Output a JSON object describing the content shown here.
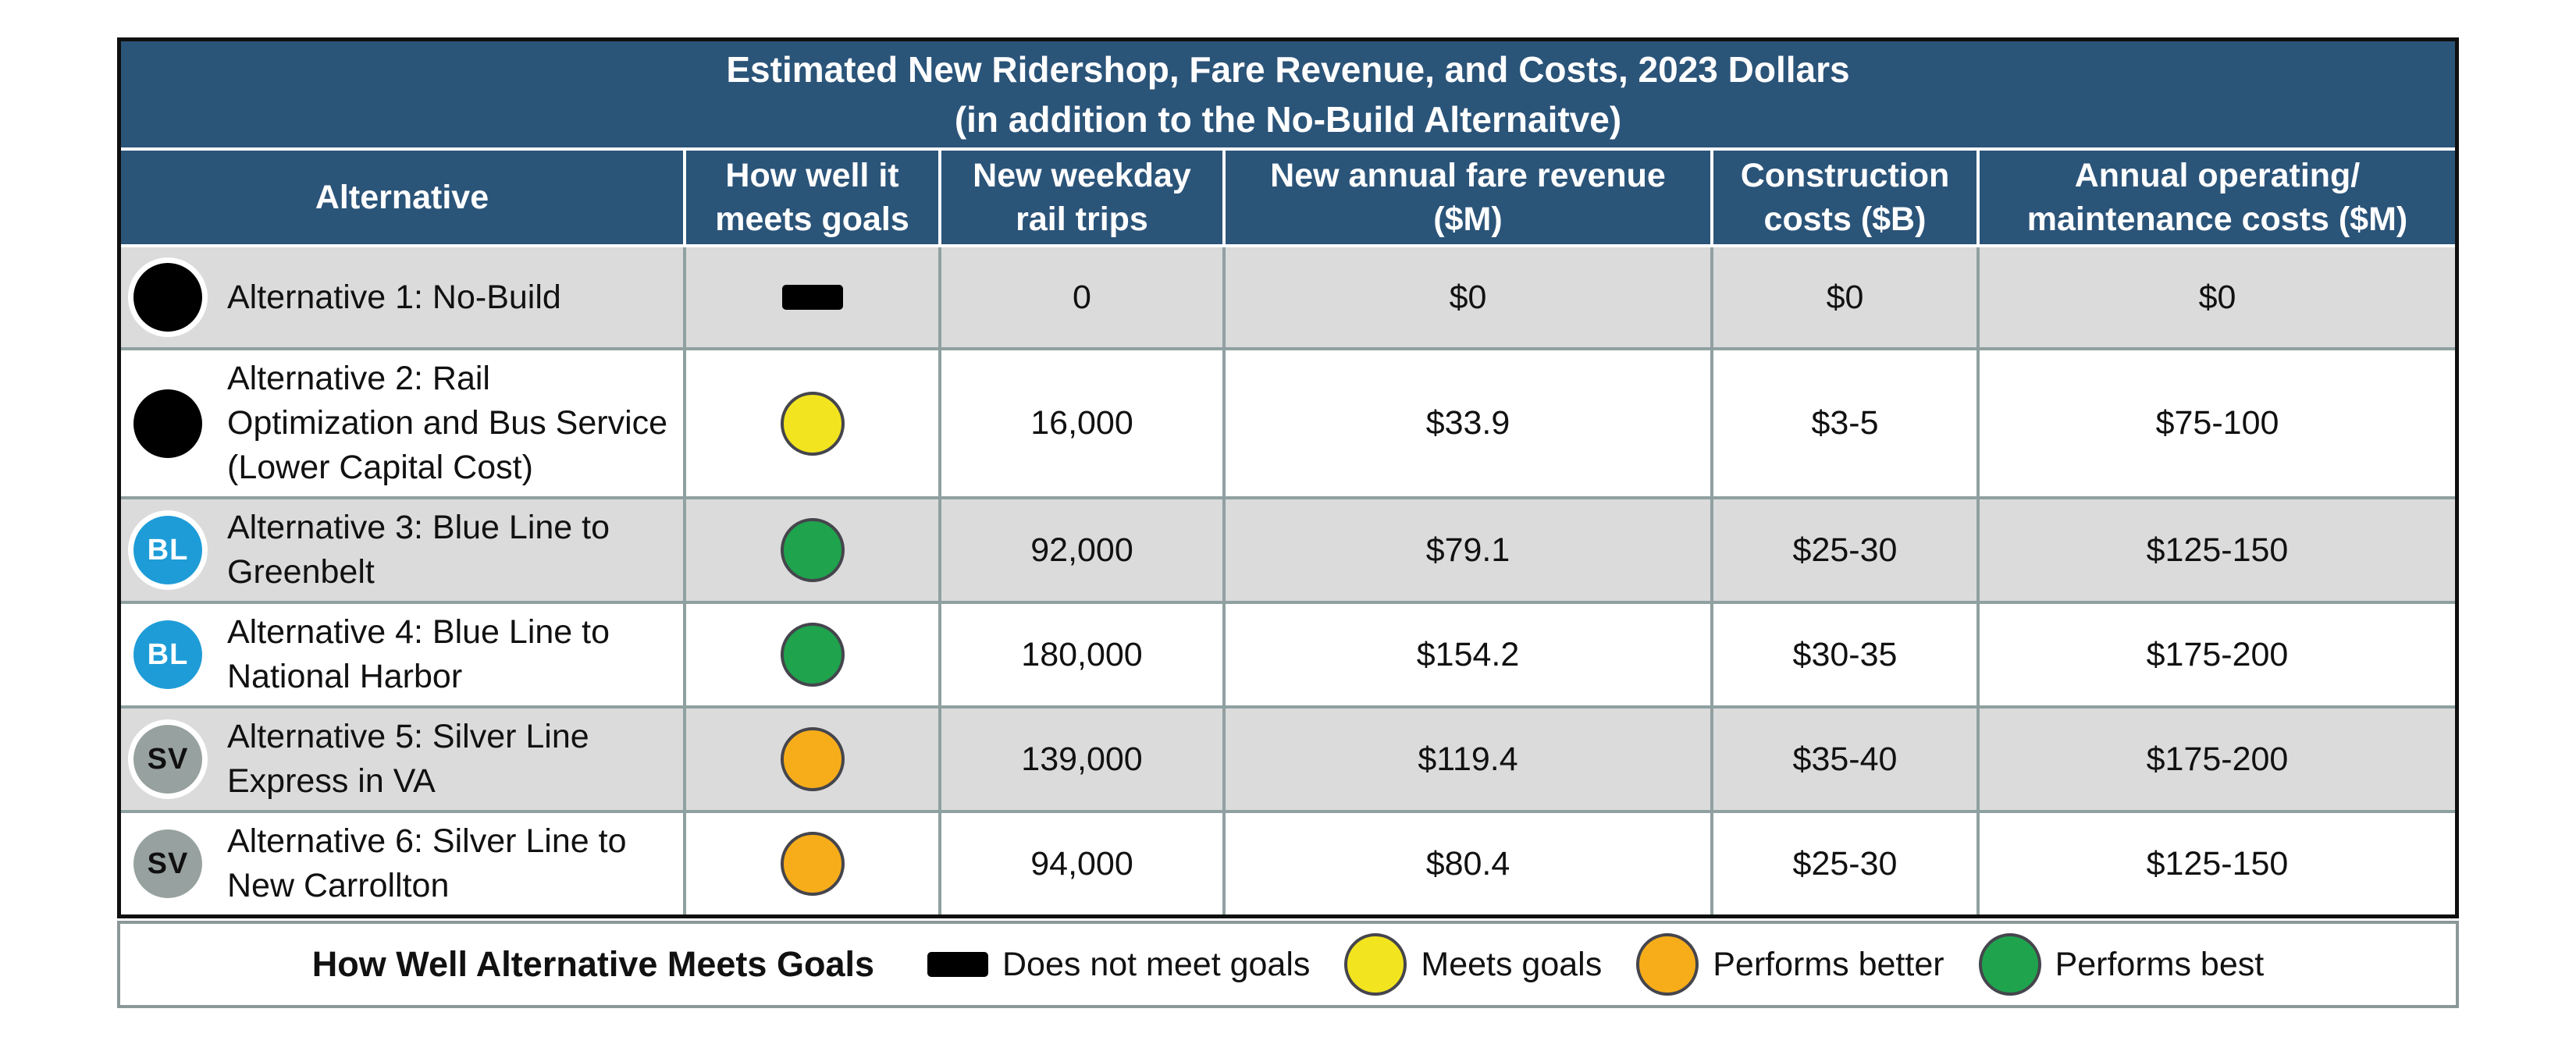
{
  "title": {
    "line1": "Estimated New Ridershop, Fare Revenue, and Costs, 2023 Dollars",
    "line2": "(in addition to the No-Build Alternaitve)"
  },
  "columns": [
    "Alternative",
    "How well it\nmeets goals",
    "New weekday\nrail trips",
    "New annual fare revenue\n($M)",
    "Construction\ncosts ($B)",
    "Annual operating/\nmaintenance costs ($M)"
  ],
  "rows": [
    {
      "badge": {
        "type": "black",
        "label": ""
      },
      "name": "Alternative 1: No-Build",
      "rating": "dash",
      "trips": "0",
      "fare_revenue": "$0",
      "construction": "$0",
      "operating": "$0",
      "shaded": true,
      "tall": false
    },
    {
      "badge": {
        "type": "black",
        "label": ""
      },
      "name": "Alternative 2: Rail Optimization and Bus Service (Lower Capital Cost)",
      "rating": "meets",
      "trips": "16,000",
      "fare_revenue": "$33.9",
      "construction": "$3-5",
      "operating": "$75-100",
      "shaded": false,
      "tall": true
    },
    {
      "badge": {
        "type": "blue",
        "label": "BL"
      },
      "name": "Alternative 3: Blue Line to Greenbelt",
      "rating": "best",
      "trips": "92,000",
      "fare_revenue": "$79.1",
      "construction": "$25-30",
      "operating": "$125-150",
      "shaded": true,
      "tall": false
    },
    {
      "badge": {
        "type": "blue",
        "label": "BL"
      },
      "name": "Alternative 4: Blue Line to National Harbor",
      "rating": "best",
      "trips": "180,000",
      "fare_revenue": "$154.2",
      "construction": "$30-35",
      "operating": "$175-200",
      "shaded": false,
      "tall": false
    },
    {
      "badge": {
        "type": "silver",
        "label": "SV"
      },
      "name": "Alternative 5: Silver Line Express in VA",
      "rating": "better",
      "trips": "139,000",
      "fare_revenue": "$119.4",
      "construction": "$35-40",
      "operating": "$175-200",
      "shaded": true,
      "tall": false
    },
    {
      "badge": {
        "type": "silver",
        "label": "SV"
      },
      "name": "Alternative 6: Silver Line to New Carrollton",
      "rating": "better",
      "trips": "94,000",
      "fare_revenue": "$80.4",
      "construction": "$25-30",
      "operating": "$125-150",
      "shaded": false,
      "tall": false
    }
  ],
  "legend": {
    "title": "How Well Alternative Meets Goals",
    "items": [
      {
        "icon": "dash",
        "label": "Does not meet goals"
      },
      {
        "icon": "meets",
        "label": "Meets goals"
      },
      {
        "icon": "better",
        "label": "Performs better"
      },
      {
        "icon": "best",
        "label": "Performs best"
      }
    ]
  },
  "colors": {
    "header_blue": "#2B5479",
    "row_shaded": "#DBDBDB",
    "grid_gray": "#8FA0A0",
    "rating_meets_yellow": "#F2E41F",
    "rating_better_orange": "#F7AD1A",
    "rating_best_green": "#1FA34D",
    "badge_blue": "#1E9CD7",
    "badge_silver": "#97A19F",
    "dash_black": "#000000"
  },
  "chart_data": {
    "type": "table",
    "title": "Estimated New Ridershop, Fare Revenue, and Costs, 2023 Dollars (in addition to the No-Build Alternaitve)",
    "columns": [
      "Alternative",
      "How well it meets goals",
      "New weekday rail trips",
      "New annual fare revenue ($M)",
      "Construction costs ($B)",
      "Annual operating/maintenance costs ($M)"
    ],
    "rows": [
      [
        "Alternative 1: No-Build",
        "Does not meet goals",
        "0",
        "$0",
        "$0",
        "$0"
      ],
      [
        "Alternative 2: Rail Optimization and Bus Service (Lower Capital Cost)",
        "Meets goals",
        "16,000",
        "$33.9",
        "$3-5",
        "$75-100"
      ],
      [
        "Alternative 3: Blue Line to Greenbelt",
        "Performs best",
        "92,000",
        "$79.1",
        "$25-30",
        "$125-150"
      ],
      [
        "Alternative 4: Blue Line to National Harbor",
        "Performs best",
        "180,000",
        "$154.2",
        "$30-35",
        "$175-200"
      ],
      [
        "Alternative 5: Silver Line Express in VA",
        "Performs better",
        "139,000",
        "$119.4",
        "$35-40",
        "$175-200"
      ],
      [
        "Alternative 6: Silver Line to New Carrollton",
        "Performs better",
        "94,000",
        "$80.4",
        "$25-30",
        "$125-150"
      ]
    ],
    "legend": [
      "Does not meet goals (black dash)",
      "Meets goals (yellow)",
      "Performs better (orange)",
      "Performs best (green)"
    ]
  }
}
